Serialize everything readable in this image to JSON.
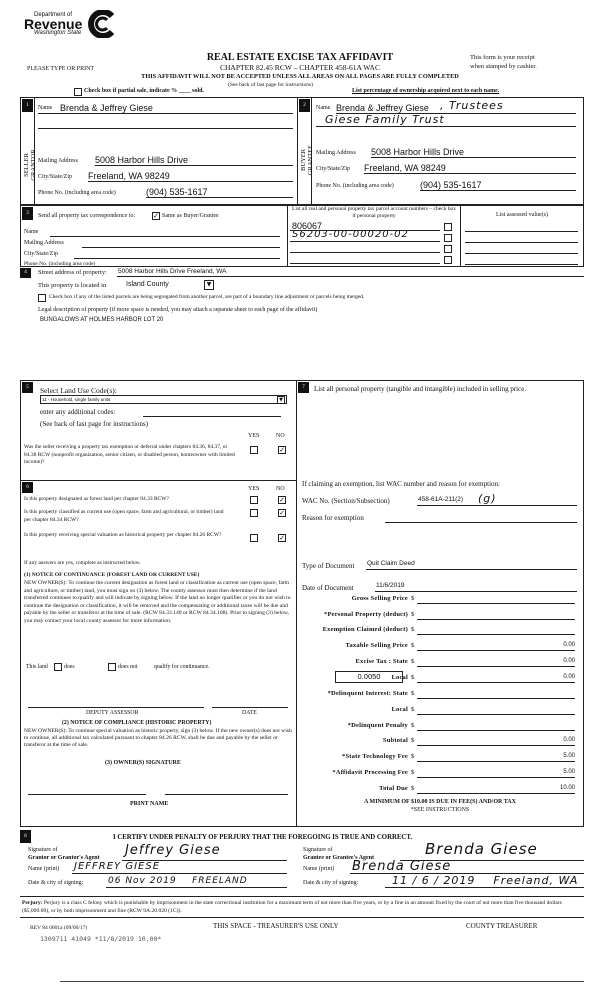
{
  "header": {
    "logo": {
      "line1": "Department of",
      "line2": "Revenue",
      "line3": "Washington State"
    },
    "title": "REAL ESTATE EXCISE TAX AFFIDAVIT",
    "chapter": "CHAPTER 82.45 RCW – CHAPTER 458-61A WAC",
    "type_or_print": "PLEASE TYPE OR PRINT",
    "receipt1": "This form is your receipt",
    "receipt2": "when stamped by cashier.",
    "warning": "THIS AFFIDAVIT WILL NOT BE ACCEPTED UNLESS ALL AREAS ON ALL PAGES ARE FULLY COMPLETED",
    "see_back": "(See back of last page for instructions)",
    "partial_sale": "Check box if partial sale, indicate % ____ sold.",
    "ownership": "List percentage of ownership acquired next to each name."
  },
  "seller": {
    "num": "1",
    "label1": "SELLER",
    "label2": "GRANTOR",
    "name_label": "Name",
    "name": "Brenda & Jeffrey Giese",
    "mail_label": "Mailing Address",
    "mail": "5008 Harbor Hills Drive",
    "city_label": "City/State/Zip",
    "city": "Freeland, WA 98249",
    "phone_label": "Phone No. (including area code)",
    "phone": "(904) 535-1617"
  },
  "buyer": {
    "num": "2",
    "label1": "BUYER",
    "label2": "GRANTEE",
    "name_label": "Name",
    "name": "Brenda & Jeffrey Giese",
    "name_hand": ", Trustees",
    "name_hand2": "Giese Family Trust",
    "mail_label": "Mailing Address",
    "mail": "5008 Harbor Hills Drive",
    "city_label": "City/State/Zip",
    "city": "Freeland, WA 98249",
    "phone_label": "Phone No. (including area code)",
    "phone": "(904) 535-1617"
  },
  "section3": {
    "num": "3",
    "send_label": "Send all property tax correspondence to:",
    "same_label": "Same as Buyer/Grantee",
    "same_checked": true,
    "name_label": "Name",
    "mail_label": "Mailing Address",
    "city_label": "City/State/Zip",
    "phone_label": "Phone No. (including area code)",
    "parcels_header": "List all real and personal property tax parcel account numbers – check box if personal property",
    "parcels": [
      "806067",
      "S6203-00-00020-02",
      "",
      ""
    ],
    "assessed_header": "List assessed value(s)"
  },
  "section4": {
    "num": "4",
    "street_label": "Street address of property:",
    "street": "5008 Harbor Hills Drive Freeland, WA",
    "located_label": "This property is located in",
    "county": "Island County",
    "segregated": "Check box if any of the listed parcels are being segregated from another parcel, are part of a boundary line adjustment or parcels being merged.",
    "legal_label": "Legal description of property (if more space is needed, you may attach a separate sheet to each page of the affidavit)",
    "legal": "BUNGALOWS AT HOLMES HARBOR LOT 20"
  },
  "section5": {
    "num": "5",
    "select_label": "Select Land Use Code(s):",
    "land_use": "11 - Household, single family units",
    "additional": "enter any additional codes:",
    "see_back": "(See back of last page for instructions)",
    "yes": "YES",
    "no": "NO",
    "q1": "Was the seller receiving a property tax exemption or deferral under chapters 84.36, 84.37, or 84.38 RCW (nonprofit organization, senior citizen, or disabled person, homeowner with limited income)?",
    "q1_answer": "NO"
  },
  "section6": {
    "num": "6",
    "yes": "YES",
    "no": "NO",
    "q1": "Is this property designated as forest land per chapter 84.33 RCW?",
    "q2": "Is this property classified as current use (open space, farm and agricultural, or timber) land per chapter 84.34 RCW?",
    "q3": "Is this property receiving special valuation as historical property per chapter 84.26 RCW?",
    "answers": [
      "NO",
      "NO",
      "NO"
    ],
    "if_yes": "If any answers are yes, complete as instructed below.",
    "n1_title": "(1) NOTICE OF CONTINUANCE (FOREST LAND OR CURRENT USE)",
    "n1_text": "NEW OWNER(S): To continue the current designation as forest land or classification as current use (open space, farm and agriculture, or timber) land, you must sign on (3) below. The county assessor must then determine if the land transferred continues to qualify and will indicate by signing below. If the land no longer qualifies or you do not wish to continue the designation or classification, it will be removed and the compensating or additional taxes will be due and payable by the seller or transferor at the time of sale. (RCW 84.33.140 or RCW 84.34.108). Prior to signing (3) below, you may contact your local county assessor for more information.",
    "this_land": "This land",
    "does": "does",
    "does_not": "does not",
    "qualify": "qualify for continuance.",
    "deputy": "DEPUTY ASSESSOR",
    "date": "DATE",
    "n2_title": "(2) NOTICE OF COMPLIANCE (HISTORIC PROPERTY)",
    "n2_text": "NEW OWNER(S): To continue special valuation as historic property, sign (3) below. If the new owner(s) does not wish to continue, all additional tax calculated pursuant to chapter 84.26 RCW, shall be due and payable by the seller or transferor at the time of sale.",
    "n3_title": "(3) OWNER(S) SIGNATURE",
    "print_name": "PRINT NAME"
  },
  "section7": {
    "num": "7",
    "personal": "List all personal property (tangible and intangible) included in selling price.",
    "exemption": "If claiming an exemption, list WAC number and reason for exemption:",
    "wac_label": "WAC No. (Section/Subsection)",
    "wac": "458-61A-211(2)",
    "wac_hand": "(g)",
    "reason_label": "Reason for exemption",
    "doc_type_label": "Type of Document",
    "doc_type": "Quit Claim Deed",
    "doc_date_label": "Date of Document",
    "doc_date": "11/6/2019",
    "rate": "0.0050",
    "amounts": [
      {
        "label": "Gross Selling Price",
        "value": ""
      },
      {
        "label": "*Personal Property (deduct)",
        "value": ""
      },
      {
        "label": "Exemption Claimed (deduct)",
        "value": ""
      },
      {
        "label": "Taxable Selling Price",
        "value": "0.00"
      },
      {
        "label": "Excise Tax : State",
        "value": "0.00"
      },
      {
        "label": "Local",
        "value": "0.00"
      },
      {
        "label": "*Delinquent Interest: State",
        "value": ""
      },
      {
        "label": "Local",
        "value": ""
      },
      {
        "label": "*Delinquent Penalty",
        "value": ""
      },
      {
        "label": "Subtotal",
        "value": "0.00"
      },
      {
        "label": "*State Technology Fee",
        "value": "5.00"
      },
      {
        "label": "*Affidavit Processing Fee",
        "value": "5.00"
      },
      {
        "label": "Total Due",
        "value": "10.00"
      }
    ],
    "minimum": "A MINIMUM OF $10.00 IS DUE IN FEE(S) AND/OR TAX",
    "see_instr": "*SEE INSTRUCTIONS"
  },
  "section8": {
    "num": "8",
    "certify": "I CERTIFY UNDER PENALTY OF PERJURY THAT THE FOREGOING IS TRUE AND CORRECT.",
    "sig_of": "Signature of",
    "grantor_agent": "Grantor or Grantor's Agent",
    "grantee_agent": "Grantee or Grantee's Agent",
    "name_print": "Name (print)",
    "date_city": "Date & city of signing:",
    "grantor_sig": "Jeffrey Giese",
    "grantor_name": "JEFFREY GIESE",
    "grantor_date": "06 Nov 2019    FREELAND",
    "grantee_sig": "Brenda Giese",
    "grantee_name": "Brenda Giese",
    "grantee_date": "11 / 6 / 2019    Freeland, WA"
  },
  "footer": {
    "perjury_label": "Perjury:",
    "perjury": "Perjury is a class C felony which is punishable by imprisonment in the state correctional institution for a maximum term of not more than five years, or by a fine in an amount fixed by the court of not more than five thousand dollars ($5,000.00), or by both imprisonment and fine (RCW 9A.20.020 (1C)).",
    "rev": "REV 84 0001a (09/06/17)",
    "treasurer_use": "THIS SPACE - TREASURER'S USE ONLY",
    "county_treasurer": "COUNTY TREASURER",
    "stamp": "1309711 41049 *11/8/2019 10.00*"
  }
}
